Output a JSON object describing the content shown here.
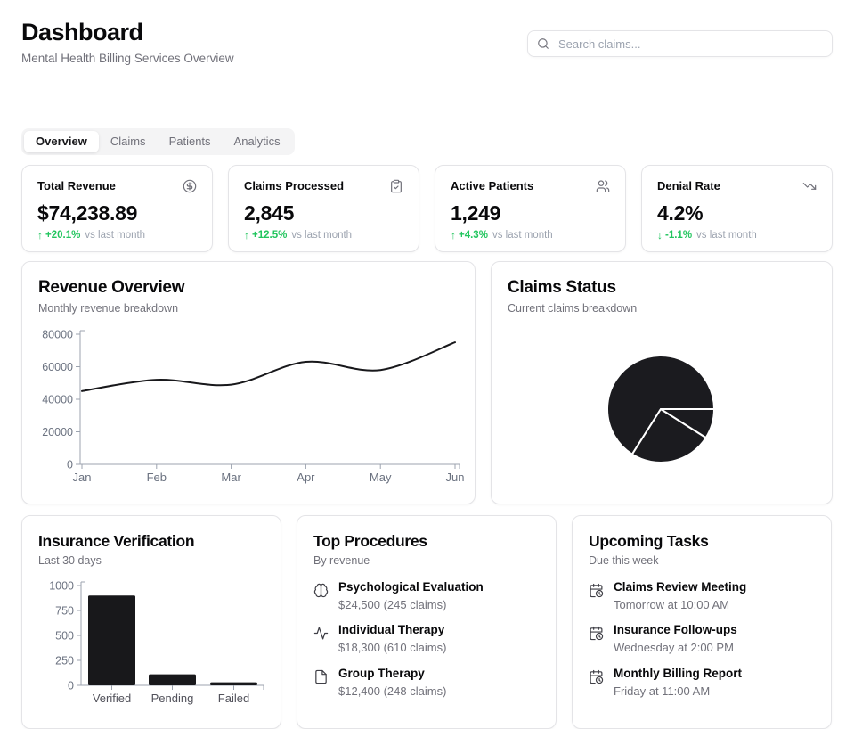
{
  "header": {
    "title": "Dashboard",
    "subtitle": "Mental Health Billing Services Overview",
    "search_placeholder": "Search claims..."
  },
  "tabs": [
    {
      "label": "Overview",
      "active": true
    },
    {
      "label": "Claims",
      "active": false
    },
    {
      "label": "Patients",
      "active": false
    },
    {
      "label": "Analytics",
      "active": false
    }
  ],
  "stats": [
    {
      "label": "Total Revenue",
      "icon": "circle-dollar-icon",
      "value": "$74,238.89",
      "arrow": "↑",
      "delta": "+20.1%",
      "note": "vs last month"
    },
    {
      "label": "Claims Processed",
      "icon": "clipboard-check-icon",
      "value": "2,845",
      "arrow": "↑",
      "delta": "+12.5%",
      "note": "vs last month"
    },
    {
      "label": "Active Patients",
      "icon": "users-icon",
      "value": "1,249",
      "arrow": "↑",
      "delta": "+4.3%",
      "note": "vs last month"
    },
    {
      "label": "Denial Rate",
      "icon": "trending-down-icon",
      "value": "4.2%",
      "arrow": "↓",
      "delta": "-1.1%",
      "note": "vs last month"
    }
  ],
  "revenue_card": {
    "title": "Revenue Overview",
    "subtitle": "Monthly revenue breakdown"
  },
  "claims_card": {
    "title": "Claims Status",
    "subtitle": "Current claims breakdown"
  },
  "verification_card": {
    "title": "Insurance Verification",
    "subtitle": "Last 30 days"
  },
  "procedures_card": {
    "title": "Top Procedures",
    "subtitle": "By revenue",
    "items": [
      {
        "icon": "brain-icon",
        "name": "Psychological Evaluation",
        "detail": "$24,500 (245 claims)"
      },
      {
        "icon": "activity-icon",
        "name": "Individual Therapy",
        "detail": "$18,300 (610 claims)"
      },
      {
        "icon": "file-icon",
        "name": "Group Therapy",
        "detail": "$12,400 (248 claims)"
      }
    ]
  },
  "tasks_card": {
    "title": "Upcoming Tasks",
    "subtitle": "Due this week",
    "items": [
      {
        "icon": "calendar-clock-icon",
        "name": "Claims Review Meeting",
        "detail": "Tomorrow at 10:00 AM"
      },
      {
        "icon": "calendar-clock-icon",
        "name": "Insurance Follow-ups",
        "detail": "Wednesday at 2:00 PM"
      },
      {
        "icon": "calendar-clock-icon",
        "name": "Monthly Billing Report",
        "detail": "Friday at 11:00 AM"
      }
    ]
  },
  "chart_data": [
    {
      "id": "revenue",
      "type": "line",
      "title": "Revenue Overview",
      "x": [
        "Jan",
        "Feb",
        "Mar",
        "Apr",
        "May",
        "Jun"
      ],
      "values": [
        45000,
        52000,
        49000,
        63000,
        58000,
        75000
      ],
      "ylim": [
        0,
        80000
      ],
      "yticks": [
        0,
        20000,
        40000,
        60000,
        80000
      ],
      "line_color": "#18181b",
      "axis_color": "#9ca3af",
      "tick_text_color": "#6b7280",
      "grid": false,
      "legend": "none"
    },
    {
      "id": "claims_status",
      "type": "pie",
      "title": "Claims Status",
      "segments": [
        {
          "value": 66
        },
        {
          "value": 25
        },
        {
          "value": 9
        }
      ],
      "unit": "percent-estimated-from-arc-angles",
      "start_angle_deg": 0,
      "direction": "counterclockwise",
      "fill_color": "#1b1b1f",
      "divider_color": "#ffffff"
    },
    {
      "id": "verification",
      "type": "bar",
      "title": "Insurance Verification",
      "categories": [
        "Verified",
        "Pending",
        "Failed"
      ],
      "values": [
        900,
        110,
        30
      ],
      "ylim": [
        0,
        1000
      ],
      "yticks": [
        0,
        250,
        500,
        750,
        1000
      ],
      "bar_color": "#18181b",
      "axis_color": "#9ca3af",
      "tick_text_color": "#6b7280",
      "grid": false,
      "legend": "none"
    }
  ]
}
